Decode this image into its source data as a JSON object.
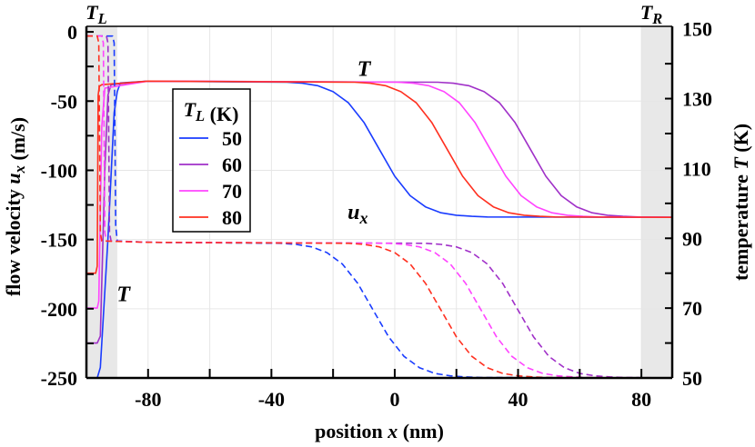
{
  "chart_data": {
    "type": "line",
    "xlabel": "position x (nm)",
    "ylabel_left": "flow velocity u_x (m/s)",
    "ylabel_right": "temperature T (K)",
    "xlim": [
      -100,
      90
    ],
    "ylim_left": [
      -250,
      4
    ],
    "ylim_right": [
      50,
      150.7
    ],
    "x_ticks": [
      -80,
      -40,
      0,
      40,
      80
    ],
    "y_left_ticks": [
      0,
      -50,
      -100,
      -150,
      -200,
      -250
    ],
    "y_right_ticks": [
      150,
      130,
      110,
      90,
      70,
      50
    ],
    "grid": true,
    "shaded_regions": [
      {
        "label": "T_L",
        "x": [
          -100,
          -90
        ]
      },
      {
        "label": "T_R",
        "x": [
          80,
          90
        ]
      }
    ],
    "annotations": [
      {
        "text": "T",
        "x": -10,
        "y_right": 136.5
      },
      {
        "text": "u_x",
        "x": -12,
        "y_left": -135
      },
      {
        "text": "T",
        "x": -88,
        "y_right": 72
      }
    ],
    "legend": {
      "title": "T_L (K)",
      "placement": "upper-left"
    },
    "series": [
      {
        "name": "50",
        "color": "#1a3cff",
        "quantity": "T",
        "axis": "right",
        "style": "solid",
        "points": [
          [
            -100,
            50
          ],
          [
            -96.5,
            50
          ],
          [
            -95.5,
            53
          ],
          [
            -93,
            90
          ],
          [
            -91,
            126
          ],
          [
            -90,
            132
          ],
          [
            -89,
            134.5
          ],
          [
            -80,
            135
          ],
          [
            -35,
            134.7
          ],
          [
            -30,
            134.4
          ],
          [
            -25,
            133.7
          ],
          [
            -20,
            132.0
          ],
          [
            -15,
            128.8
          ],
          [
            -10,
            123.2
          ],
          [
            -5,
            115.5
          ],
          [
            0,
            107.8
          ],
          [
            5,
            102.2
          ],
          [
            10,
            99.0
          ],
          [
            15,
            97.3
          ],
          [
            20,
            96.6
          ],
          [
            25,
            96.3
          ],
          [
            30,
            96.1
          ],
          [
            90,
            96
          ]
        ]
      },
      {
        "name": "60",
        "color": "#a030c8",
        "quantity": "T",
        "axis": "right",
        "style": "solid",
        "points": [
          [
            -100,
            60
          ],
          [
            -96.5,
            60
          ],
          [
            -95.5,
            62
          ],
          [
            -94,
            110
          ],
          [
            -93,
            131
          ],
          [
            -92,
            134
          ],
          [
            -80,
            135
          ],
          [
            14,
            134.7
          ],
          [
            19,
            134.4
          ],
          [
            24,
            133.7
          ],
          [
            29,
            132.0
          ],
          [
            34,
            128.8
          ],
          [
            39,
            123.2
          ],
          [
            44,
            115.5
          ],
          [
            49,
            107.8
          ],
          [
            54,
            102.2
          ],
          [
            59,
            99.0
          ],
          [
            64,
            97.3
          ],
          [
            69,
            96.6
          ],
          [
            74,
            96.3
          ],
          [
            79,
            96.1
          ],
          [
            90,
            96
          ]
        ]
      },
      {
        "name": "70",
        "color": "#ff44ff",
        "quantity": "T",
        "axis": "right",
        "style": "solid",
        "points": [
          [
            -100,
            70
          ],
          [
            -96.5,
            70
          ],
          [
            -96,
            72
          ],
          [
            -95,
            122
          ],
          [
            -94,
            133
          ],
          [
            -80,
            135
          ],
          [
            1,
            134.7
          ],
          [
            6,
            134.4
          ],
          [
            11,
            133.7
          ],
          [
            16,
            132.0
          ],
          [
            21,
            128.8
          ],
          [
            26,
            123.2
          ],
          [
            31,
            115.5
          ],
          [
            36,
            107.8
          ],
          [
            41,
            102.2
          ],
          [
            46,
            99.0
          ],
          [
            51,
            97.3
          ],
          [
            56,
            96.6
          ],
          [
            61,
            96.3
          ],
          [
            66,
            96.1
          ],
          [
            90,
            96
          ]
        ]
      },
      {
        "name": "80",
        "color": "#ff3020",
        "quantity": "T",
        "axis": "right",
        "style": "solid",
        "points": [
          [
            -100,
            80
          ],
          [
            -97,
            80
          ],
          [
            -96.5,
            82
          ],
          [
            -96.2,
            131
          ],
          [
            -95.8,
            133.5
          ],
          [
            -95,
            134
          ],
          [
            -80,
            135
          ],
          [
            -13,
            134.7
          ],
          [
            -8,
            134.4
          ],
          [
            -3,
            133.7
          ],
          [
            2,
            132.0
          ],
          [
            7,
            128.8
          ],
          [
            12,
            123.2
          ],
          [
            17,
            115.5
          ],
          [
            22,
            107.8
          ],
          [
            27,
            102.2
          ],
          [
            32,
            99.0
          ],
          [
            37,
            97.3
          ],
          [
            42,
            96.6
          ],
          [
            47,
            96.3
          ],
          [
            52,
            96.1
          ],
          [
            90,
            96
          ]
        ]
      },
      {
        "name": "50",
        "color": "#1a3cff",
        "quantity": "u_x",
        "axis": "left",
        "style": "dashed",
        "points": [
          [
            -100,
            -3
          ],
          [
            -91.5,
            -3
          ],
          [
            -91,
            -8
          ],
          [
            -90.5,
            -140
          ],
          [
            -90,
            -151
          ],
          [
            -80,
            -152
          ],
          [
            -37,
            -152.7
          ],
          [
            -32,
            -153.5
          ],
          [
            -27,
            -155.3
          ],
          [
            -22,
            -159.4
          ],
          [
            -17,
            -167.6
          ],
          [
            -12,
            -181.7
          ],
          [
            -7,
            -201
          ],
          [
            -2,
            -220.3
          ],
          [
            3,
            -234.4
          ],
          [
            8,
            -242.6
          ],
          [
            13,
            -246.7
          ],
          [
            18,
            -248.5
          ],
          [
            23,
            -249.3
          ],
          [
            28,
            -249.7
          ],
          [
            90,
            -250
          ]
        ]
      },
      {
        "name": "60",
        "color": "#a030c8",
        "quantity": "u_x",
        "axis": "left",
        "style": "dashed",
        "points": [
          [
            -100,
            -3
          ],
          [
            -93.5,
            -3
          ],
          [
            -93,
            -8
          ],
          [
            -92.5,
            -145
          ],
          [
            -92,
            -151
          ],
          [
            -80,
            -152
          ],
          [
            10,
            -152.7
          ],
          [
            15,
            -153.5
          ],
          [
            20,
            -155.3
          ],
          [
            25,
            -159.4
          ],
          [
            30,
            -167.6
          ],
          [
            35,
            -181.7
          ],
          [
            40,
            -201
          ],
          [
            45,
            -220.3
          ],
          [
            50,
            -234.4
          ],
          [
            55,
            -242.6
          ],
          [
            60,
            -246.7
          ],
          [
            65,
            -248.5
          ],
          [
            70,
            -249.3
          ],
          [
            75,
            -249.7
          ],
          [
            90,
            -250
          ]
        ]
      },
      {
        "name": "70",
        "color": "#ff44ff",
        "quantity": "u_x",
        "axis": "left",
        "style": "dashed",
        "points": [
          [
            -100,
            -3
          ],
          [
            -95,
            -3
          ],
          [
            -94.5,
            -8
          ],
          [
            -94,
            -145
          ],
          [
            -93.5,
            -151
          ],
          [
            -80,
            -152
          ],
          [
            -2,
            -152.7
          ],
          [
            3,
            -153.5
          ],
          [
            8,
            -155.3
          ],
          [
            13,
            -159.4
          ],
          [
            18,
            -167.6
          ],
          [
            23,
            -181.7
          ],
          [
            28,
            -201
          ],
          [
            33,
            -220.3
          ],
          [
            38,
            -234.4
          ],
          [
            43,
            -242.6
          ],
          [
            48,
            -246.7
          ],
          [
            53,
            -248.5
          ],
          [
            58,
            -249.3
          ],
          [
            63,
            -249.7
          ],
          [
            90,
            -250
          ]
        ]
      },
      {
        "name": "80",
        "color": "#ff3020",
        "quantity": "u_x",
        "axis": "left",
        "style": "dashed",
        "points": [
          [
            -100,
            -3
          ],
          [
            -96.5,
            -3
          ],
          [
            -96,
            -8
          ],
          [
            -95.5,
            -145
          ],
          [
            -95,
            -151
          ],
          [
            -80,
            -152
          ],
          [
            -15,
            -152.7
          ],
          [
            -10,
            -153.5
          ],
          [
            -5,
            -155.3
          ],
          [
            0,
            -159.4
          ],
          [
            5,
            -167.6
          ],
          [
            10,
            -181.7
          ],
          [
            15,
            -201
          ],
          [
            20,
            -220.3
          ],
          [
            25,
            -234.4
          ],
          [
            30,
            -242.6
          ],
          [
            35,
            -246.7
          ],
          [
            40,
            -248.5
          ],
          [
            45,
            -249.3
          ],
          [
            50,
            -249.7
          ],
          [
            90,
            -250
          ]
        ]
      }
    ]
  }
}
